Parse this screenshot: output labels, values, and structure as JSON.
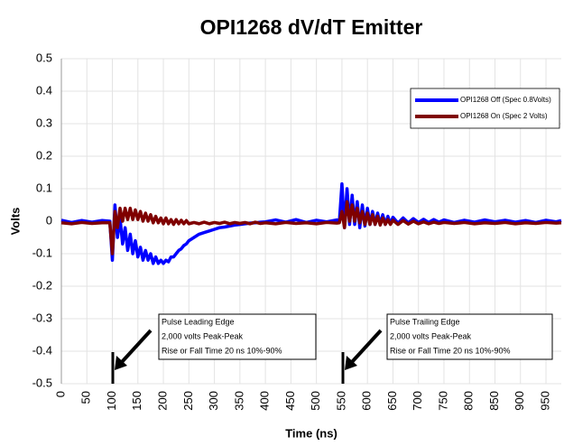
{
  "chart_data": {
    "type": "line",
    "title": "OPI1268 dV/dT Emitter",
    "x_label": "Time (ns)",
    "y_label": "Volts",
    "x": [
      0,
      20,
      40,
      60,
      80,
      95,
      100,
      105,
      110,
      115,
      120,
      125,
      130,
      135,
      140,
      145,
      150,
      155,
      160,
      165,
      170,
      175,
      180,
      185,
      190,
      195,
      200,
      205,
      210,
      215,
      220,
      225,
      230,
      235,
      240,
      245,
      250,
      260,
      270,
      280,
      290,
      300,
      310,
      320,
      330,
      340,
      350,
      360,
      370,
      380,
      390,
      400,
      420,
      440,
      460,
      480,
      500,
      520,
      540,
      545,
      550,
      555,
      560,
      565,
      570,
      575,
      580,
      585,
      590,
      595,
      600,
      605,
      610,
      615,
      620,
      625,
      630,
      635,
      640,
      645,
      650,
      660,
      670,
      680,
      690,
      700,
      710,
      720,
      730,
      740,
      750,
      770,
      790,
      810,
      830,
      850,
      870,
      890,
      910,
      930,
      950,
      970,
      980
    ],
    "series": [
      {
        "name": "OPI1268 Off (Spec 0.8Volts)",
        "color": "#0000ff",
        "values": [
          0.003,
          -0.004,
          0.002,
          -0.003,
          0.002,
          0.0,
          -0.12,
          0.05,
          -0.05,
          0.01,
          -0.07,
          -0.02,
          -0.09,
          -0.04,
          -0.1,
          -0.06,
          -0.11,
          -0.08,
          -0.12,
          -0.09,
          -0.12,
          -0.1,
          -0.13,
          -0.11,
          -0.13,
          -0.12,
          -0.13,
          -0.12,
          -0.125,
          -0.11,
          -0.11,
          -0.1,
          -0.09,
          -0.085,
          -0.075,
          -0.07,
          -0.06,
          -0.05,
          -0.04,
          -0.035,
          -0.03,
          -0.025,
          -0.02,
          -0.018,
          -0.015,
          -0.012,
          -0.01,
          -0.008,
          -0.006,
          -0.005,
          -0.003,
          -0.002,
          0.004,
          -0.003,
          0.005,
          -0.004,
          0.003,
          -0.002,
          0.004,
          0.0,
          0.115,
          -0.02,
          0.1,
          -0.01,
          0.08,
          -0.01,
          0.06,
          -0.02,
          0.05,
          -0.015,
          0.04,
          -0.01,
          0.03,
          -0.01,
          0.025,
          -0.01,
          0.02,
          -0.01,
          0.015,
          -0.008,
          0.012,
          -0.006,
          0.01,
          -0.005,
          0.008,
          -0.004,
          0.006,
          -0.004,
          0.005,
          -0.003,
          0.004,
          -0.004,
          0.003,
          -0.003,
          0.004,
          -0.002,
          0.003,
          -0.003,
          0.002,
          -0.004,
          0.003,
          -0.002,
          0.002
        ]
      },
      {
        "name": "OPI1268 On (Spec 2 Volts)",
        "color": "#7f0000",
        "values": [
          -0.005,
          -0.008,
          -0.004,
          -0.007,
          -0.005,
          -0.005,
          -0.1,
          0.03,
          -0.02,
          0.04,
          0.0,
          0.04,
          0.005,
          0.04,
          0.005,
          0.035,
          0.005,
          0.03,
          0.0,
          0.025,
          0.0,
          0.02,
          -0.005,
          0.015,
          -0.005,
          0.01,
          -0.008,
          0.01,
          -0.008,
          0.005,
          -0.01,
          0.005,
          -0.008,
          0.003,
          -0.008,
          0.002,
          -0.008,
          -0.004,
          -0.008,
          -0.003,
          -0.008,
          -0.004,
          -0.007,
          -0.003,
          -0.008,
          -0.004,
          -0.007,
          -0.004,
          -0.008,
          -0.003,
          -0.007,
          -0.005,
          -0.008,
          -0.004,
          -0.007,
          -0.005,
          -0.008,
          -0.004,
          -0.006,
          -0.005,
          0.03,
          -0.02,
          0.06,
          0.0,
          0.05,
          0.0,
          0.04,
          -0.005,
          0.03,
          -0.01,
          0.025,
          -0.01,
          0.02,
          -0.01,
          0.015,
          -0.012,
          0.01,
          -0.01,
          0.005,
          -0.01,
          0.003,
          -0.01,
          0.002,
          -0.009,
          0.0,
          -0.008,
          -0.002,
          -0.008,
          -0.003,
          -0.007,
          -0.004,
          -0.007,
          -0.004,
          -0.008,
          -0.005,
          -0.007,
          -0.004,
          -0.008,
          -0.005,
          -0.007,
          -0.004,
          -0.006,
          -0.005
        ]
      }
    ],
    "xlim": [
      0,
      980
    ],
    "ylim": [
      -0.5,
      0.5
    ],
    "xticks": [
      0,
      50,
      100,
      150,
      200,
      250,
      300,
      350,
      400,
      450,
      500,
      550,
      600,
      650,
      700,
      750,
      800,
      850,
      900,
      950
    ],
    "yticks": [
      0.5,
      0.4,
      0.3,
      0.2,
      0.1,
      0,
      -0.1,
      -0.2,
      -0.3,
      -0.4,
      -0.5
    ],
    "grid": true,
    "legend": "upper right",
    "annotations": [
      {
        "lines": [
          "Pulse Leading Edge",
          "2,000 volts Peak-Peak",
          "Rise or Fall Time 20 ns 10%-90%"
        ]
      },
      {
        "lines": [
          "Pulse Trailing Edge",
          "2,000 volts Peak-Peak",
          "Rise or Fall Time 20 ns 10%-90%"
        ]
      }
    ]
  }
}
